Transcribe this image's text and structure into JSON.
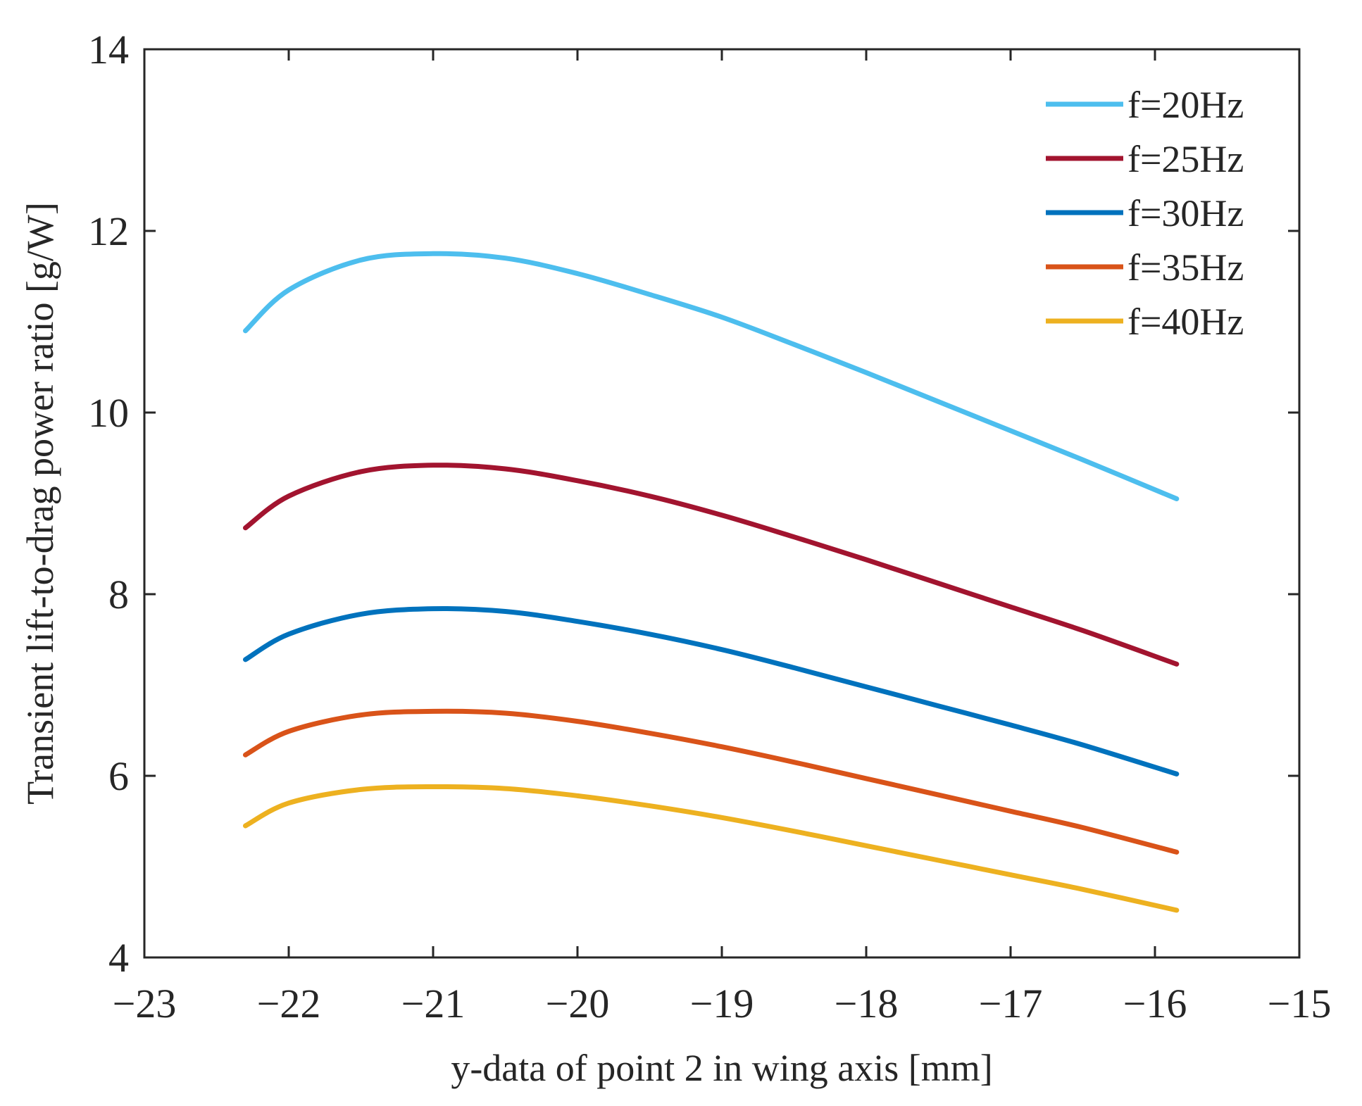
{
  "chart_data": {
    "type": "line",
    "title": "",
    "xlabel": "y-data of point 2 in wing axis [mm]",
    "ylabel": "Transient lift-to-drag power ratio [g/W]",
    "xlim": [
      -23,
      -15
    ],
    "ylim": [
      4,
      14
    ],
    "grid": false,
    "legend_position": "top-right",
    "xticks": [
      -23,
      -22,
      -21,
      -20,
      -19,
      -18,
      -17,
      -16,
      -15
    ],
    "xtick_labels": [
      "−23",
      "−22",
      "−21",
      "−20",
      "−19",
      "−18",
      "−17",
      "−16",
      "−15"
    ],
    "yticks": [
      4,
      6,
      8,
      10,
      12,
      14
    ],
    "ytick_labels": [
      "4",
      "6",
      "8",
      "10",
      "12",
      "14"
    ],
    "x": [
      -22.3,
      -22.0,
      -21.5,
      -21.0,
      -20.5,
      -20.0,
      -19.5,
      -19.0,
      -18.5,
      -18.0,
      -17.5,
      -17.0,
      -16.5,
      -15.85
    ],
    "series": [
      {
        "name": "f=20Hz",
        "color": "#4DBEEE",
        "values": [
          10.9,
          11.35,
          11.68,
          11.75,
          11.7,
          11.53,
          11.3,
          11.05,
          10.75,
          10.44,
          10.12,
          9.8,
          9.48,
          9.05
        ]
      },
      {
        "name": "f=25Hz",
        "color": "#A2142F",
        "values": [
          8.73,
          9.08,
          9.35,
          9.42,
          9.38,
          9.25,
          9.08,
          8.87,
          8.63,
          8.38,
          8.12,
          7.86,
          7.6,
          7.23
        ]
      },
      {
        "name": "f=30Hz",
        "color": "#0072BD",
        "values": [
          7.28,
          7.56,
          7.78,
          7.84,
          7.81,
          7.7,
          7.56,
          7.39,
          7.19,
          6.98,
          6.77,
          6.56,
          6.34,
          6.02
        ]
      },
      {
        "name": "f=35Hz",
        "color": "#D95319",
        "values": [
          6.23,
          6.49,
          6.67,
          6.71,
          6.69,
          6.6,
          6.47,
          6.32,
          6.15,
          5.97,
          5.79,
          5.61,
          5.43,
          5.16
        ]
      },
      {
        "name": "f=40Hz",
        "color": "#EDB120",
        "values": [
          5.45,
          5.7,
          5.85,
          5.88,
          5.86,
          5.78,
          5.67,
          5.54,
          5.39,
          5.23,
          5.07,
          4.91,
          4.75,
          4.52
        ]
      }
    ]
  }
}
